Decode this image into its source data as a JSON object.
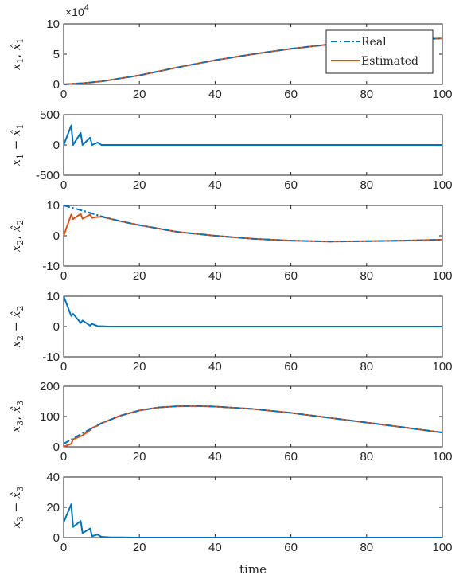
{
  "figure": {
    "xlabel": "time",
    "colors": {
      "real": "#0072BD",
      "estimated": "#D95319",
      "error": "#0072BD",
      "axis": "#262626"
    }
  },
  "chart_data": [
    {
      "type": "line",
      "ylabel": "x1, x̂1",
      "ylabel_parts": {
        "main": "x",
        "sub": "1",
        "hat": "x̂",
        "hatsub": "1"
      },
      "exponent_label": "×10",
      "exponent_power": "4",
      "xlim": [
        0,
        100
      ],
      "ylim": [
        0,
        10
      ],
      "xticks": [
        "0",
        "20",
        "40",
        "60",
        "80",
        "100"
      ],
      "yticks": [
        "0",
        "5",
        "10"
      ],
      "legend": {
        "position": "top-right",
        "entries": [
          "Real",
          "Estimated"
        ]
      },
      "series": [
        {
          "name": "Real",
          "style": "dash-dot",
          "x": [
            0,
            5,
            10,
            20,
            30,
            40,
            50,
            60,
            70,
            80,
            90,
            100
          ],
          "y": [
            0,
            0.2,
            0.5,
            1.5,
            2.8,
            4.0,
            5.0,
            5.9,
            6.6,
            7.1,
            7.4,
            7.6
          ]
        },
        {
          "name": "Estimated",
          "style": "solid",
          "x": [
            0,
            5,
            10,
            20,
            30,
            40,
            50,
            60,
            70,
            80,
            90,
            100
          ],
          "y": [
            0,
            0.2,
            0.5,
            1.5,
            2.8,
            4.0,
            5.0,
            5.9,
            6.6,
            7.1,
            7.4,
            7.6
          ]
        }
      ]
    },
    {
      "type": "line",
      "ylabel": "x1 − x̂1",
      "ylabel_parts": {
        "main": "x",
        "sub": "1",
        "hat": "x̂",
        "hatsub": "1",
        "op": "−"
      },
      "xlim": [
        0,
        100
      ],
      "ylim": [
        -500,
        500
      ],
      "xticks": [
        "0",
        "20",
        "40",
        "60",
        "80",
        "100"
      ],
      "yticks": [
        "-500",
        "0",
        "500"
      ],
      "series": [
        {
          "style": "solid",
          "x": [
            0,
            2,
            2.5,
            4.5,
            5,
            7,
            7.5,
            9,
            10,
            12,
            100
          ],
          "y": [
            0,
            320,
            0,
            200,
            0,
            120,
            0,
            40,
            0,
            0,
            0
          ]
        }
      ]
    },
    {
      "type": "line",
      "ylabel": "x2, x̂2",
      "ylabel_parts": {
        "main": "x",
        "sub": "2",
        "hat": "x̂",
        "hatsub": "2"
      },
      "xlim": [
        0,
        100
      ],
      "ylim": [
        -10,
        10
      ],
      "xticks": [
        "0",
        "20",
        "40",
        "60",
        "80",
        "100"
      ],
      "yticks": [
        "-10",
        "0",
        "10"
      ],
      "series": [
        {
          "name": "Real",
          "style": "dash-dot",
          "x": [
            0,
            5,
            10,
            15,
            20,
            30,
            40,
            50,
            60,
            70,
            80,
            90,
            100
          ],
          "y": [
            10,
            8.3,
            6.4,
            4.8,
            3.5,
            1.3,
            0,
            -1.0,
            -1.6,
            -1.9,
            -1.8,
            -1.6,
            -1.3
          ]
        },
        {
          "name": "Estimated",
          "style": "solid",
          "x": [
            0,
            2,
            2.5,
            4.5,
            5,
            7,
            7.5,
            9,
            10,
            15,
            20,
            30,
            40,
            50,
            60,
            70,
            80,
            90,
            100
          ],
          "y": [
            0,
            7,
            5.5,
            7.2,
            5.6,
            7.0,
            5.9,
            6.2,
            6.3,
            4.8,
            3.5,
            1.3,
            0,
            -1.0,
            -1.6,
            -1.9,
            -1.8,
            -1.6,
            -1.3
          ]
        }
      ]
    },
    {
      "type": "line",
      "ylabel": "x2 − x̂2",
      "ylabel_parts": {
        "main": "x",
        "sub": "2",
        "hat": "x̂",
        "hatsub": "2",
        "op": "−"
      },
      "xlim": [
        0,
        100
      ],
      "ylim": [
        -10,
        10
      ],
      "xticks": [
        "0",
        "20",
        "40",
        "60",
        "80",
        "100"
      ],
      "yticks": [
        "-10",
        "0",
        "10"
      ],
      "series": [
        {
          "style": "solid",
          "x": [
            0,
            2,
            2.5,
            4.5,
            5,
            7,
            7.5,
            9,
            10,
            12,
            100
          ],
          "y": [
            10,
            3.5,
            4.2,
            1.2,
            2.0,
            0.3,
            0.9,
            0.1,
            0.1,
            0,
            0
          ]
        }
      ]
    },
    {
      "type": "line",
      "ylabel": "x3, x̂3",
      "ylabel_parts": {
        "main": "x",
        "sub": "3",
        "hat": "x̂",
        "hatsub": "3"
      },
      "xlim": [
        0,
        100
      ],
      "ylim": [
        0,
        200
      ],
      "xticks": [
        "0",
        "20",
        "40",
        "60",
        "80",
        "100"
      ],
      "yticks": [
        "0",
        "100",
        "200"
      ],
      "series": [
        {
          "name": "Real",
          "style": "dash-dot",
          "x": [
            0,
            5,
            10,
            15,
            20,
            25,
            30,
            35,
            40,
            50,
            60,
            70,
            80,
            90,
            100
          ],
          "y": [
            10,
            45,
            78,
            103,
            120,
            130,
            134,
            135,
            133,
            125,
            112,
            96,
            80,
            64,
            47
          ]
        },
        {
          "name": "Estimated",
          "style": "solid",
          "x": [
            0,
            2,
            2.5,
            4.5,
            5,
            7,
            7.5,
            9,
            10,
            15,
            20,
            25,
            30,
            35,
            40,
            50,
            60,
            70,
            80,
            90,
            100
          ],
          "y": [
            0,
            10,
            25,
            35,
            38,
            55,
            62,
            70,
            78,
            103,
            120,
            130,
            134,
            135,
            133,
            125,
            112,
            96,
            80,
            64,
            47
          ]
        }
      ]
    },
    {
      "type": "line",
      "ylabel": "x3 − x̂3",
      "ylabel_parts": {
        "main": "x",
        "sub": "3",
        "hat": "x̂",
        "hatsub": "3",
        "op": "−"
      },
      "xlim": [
        0,
        100
      ],
      "ylim": [
        0,
        40
      ],
      "xticks": [
        "0",
        "20",
        "40",
        "60",
        "80",
        "100"
      ],
      "yticks": [
        "0",
        "20",
        "40"
      ],
      "series": [
        {
          "style": "solid",
          "x": [
            0,
            2,
            2.5,
            4.5,
            5,
            7,
            7.5,
            9,
            10,
            12,
            20,
            100
          ],
          "y": [
            10,
            22,
            7,
            11,
            3,
            6,
            1,
            2,
            0.5,
            0.2,
            0,
            0
          ]
        }
      ]
    }
  ]
}
